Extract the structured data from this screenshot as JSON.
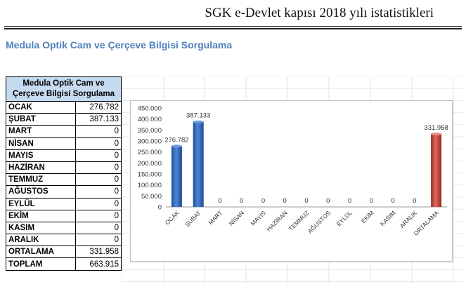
{
  "header": {
    "title": "SGK e-Devlet kapısı 2018 yılı istatistikleri"
  },
  "section": {
    "title": "Medula Optik Cam ve Çerçeve Bilgisi Sorgulama"
  },
  "table": {
    "header_line1": "Medula Optik Cam ve",
    "header_line2": "Çerçeve Bilgisi Sorgulama",
    "rows": [
      {
        "month": "OCAK",
        "value": "276.782"
      },
      {
        "month": "ŞUBAT",
        "value": "387.133"
      },
      {
        "month": "MART",
        "value": "0"
      },
      {
        "month": "NİSAN",
        "value": "0"
      },
      {
        "month": "MAYIS",
        "value": "0"
      },
      {
        "month": "HAZİRAN",
        "value": "0"
      },
      {
        "month": "TEMMUZ",
        "value": "0"
      },
      {
        "month": "AĞUSTOS",
        "value": "0"
      },
      {
        "month": "EYLÜL",
        "value": "0"
      },
      {
        "month": "EKİM",
        "value": "0"
      },
      {
        "month": "KASIM",
        "value": "0"
      },
      {
        "month": "ARALIK",
        "value": "0"
      },
      {
        "month": "ORTALAMA",
        "value": "331.958"
      },
      {
        "month": "TOPLAM",
        "value": "663.915"
      }
    ]
  },
  "chart_data": {
    "type": "bar",
    "categories": [
      "OCAK",
      "ŞUBAT",
      "MART",
      "NİSAN",
      "MAYIS",
      "HAZİRAN",
      "TEMMUZ",
      "AĞUSTOS",
      "EYLÜL",
      "EKİM",
      "KASIM",
      "ARALIK",
      "ORTALAMA"
    ],
    "values": [
      276782,
      387133,
      0,
      0,
      0,
      0,
      0,
      0,
      0,
      0,
      0,
      0,
      331958
    ],
    "data_labels": [
      "276.782",
      "387.133",
      "0",
      "0",
      "0",
      "0",
      "0",
      "0",
      "0",
      "0",
      "0",
      "0",
      "331.958"
    ],
    "ylim": [
      0,
      450000
    ],
    "yticks": [
      0,
      50000,
      100000,
      150000,
      200000,
      250000,
      300000,
      350000,
      400000,
      450000
    ],
    "ytick_labels": [
      "0",
      "50.000",
      "100.000",
      "150.000",
      "200.000",
      "250.000",
      "300.000",
      "350.000",
      "400.000",
      "450.000"
    ],
    "title": "",
    "xlabel": "",
    "ylabel": "",
    "grid": false,
    "colors": {
      "monthly": "#2e63b5",
      "average": "#c0392b"
    },
    "highlight_category": "ORTALAMA"
  }
}
